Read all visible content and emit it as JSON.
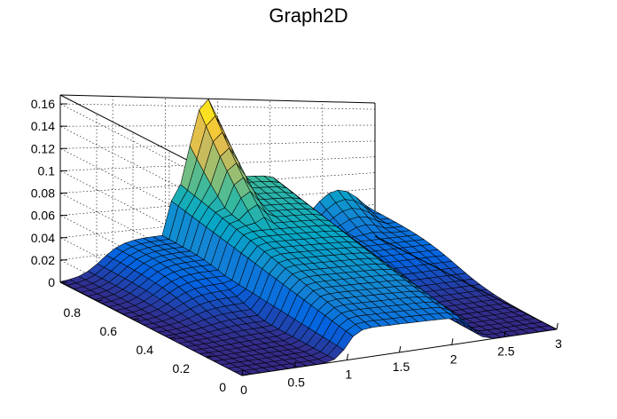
{
  "chart_data": {
    "type": "surface",
    "title": "Graph2D",
    "xlabel": "",
    "ylabel": "",
    "zlabel": "",
    "xlim": [
      0,
      3
    ],
    "ylim": [
      0,
      1
    ],
    "zlim": [
      0,
      0.168
    ],
    "x_ticks": [
      "0",
      "0.5",
      "1",
      "1.5",
      "2",
      "2.5",
      "3"
    ],
    "y_ticks": [
      "0",
      "0.2",
      "0.4",
      "0.6",
      "0.8"
    ],
    "z_ticks": [
      "0",
      "0.02",
      "0.04",
      "0.06",
      "0.08",
      "0.1",
      "0.12",
      "0.14",
      "0.16"
    ],
    "grid": true,
    "colormap": [
      "#352a87",
      "#0363e1",
      "#1485d4",
      "#06a7c6",
      "#38b99e",
      "#92bf73",
      "#d9ba56",
      "#fcce2e",
      "#f9fb0e"
    ],
    "surface_features": [
      {
        "name": "peak",
        "x": 1.4,
        "y": 1.0,
        "z": 0.168
      },
      {
        "name": "shoulder",
        "x": 2.7,
        "y": 1.0,
        "z": 0.062
      },
      {
        "name": "ridge",
        "x_range": [
          1.0,
          2.2
        ],
        "y_range": [
          0.0,
          1.0
        ],
        "z_range": [
          0.02,
          0.088
        ]
      },
      {
        "name": "base",
        "z": 0.0
      }
    ]
  }
}
